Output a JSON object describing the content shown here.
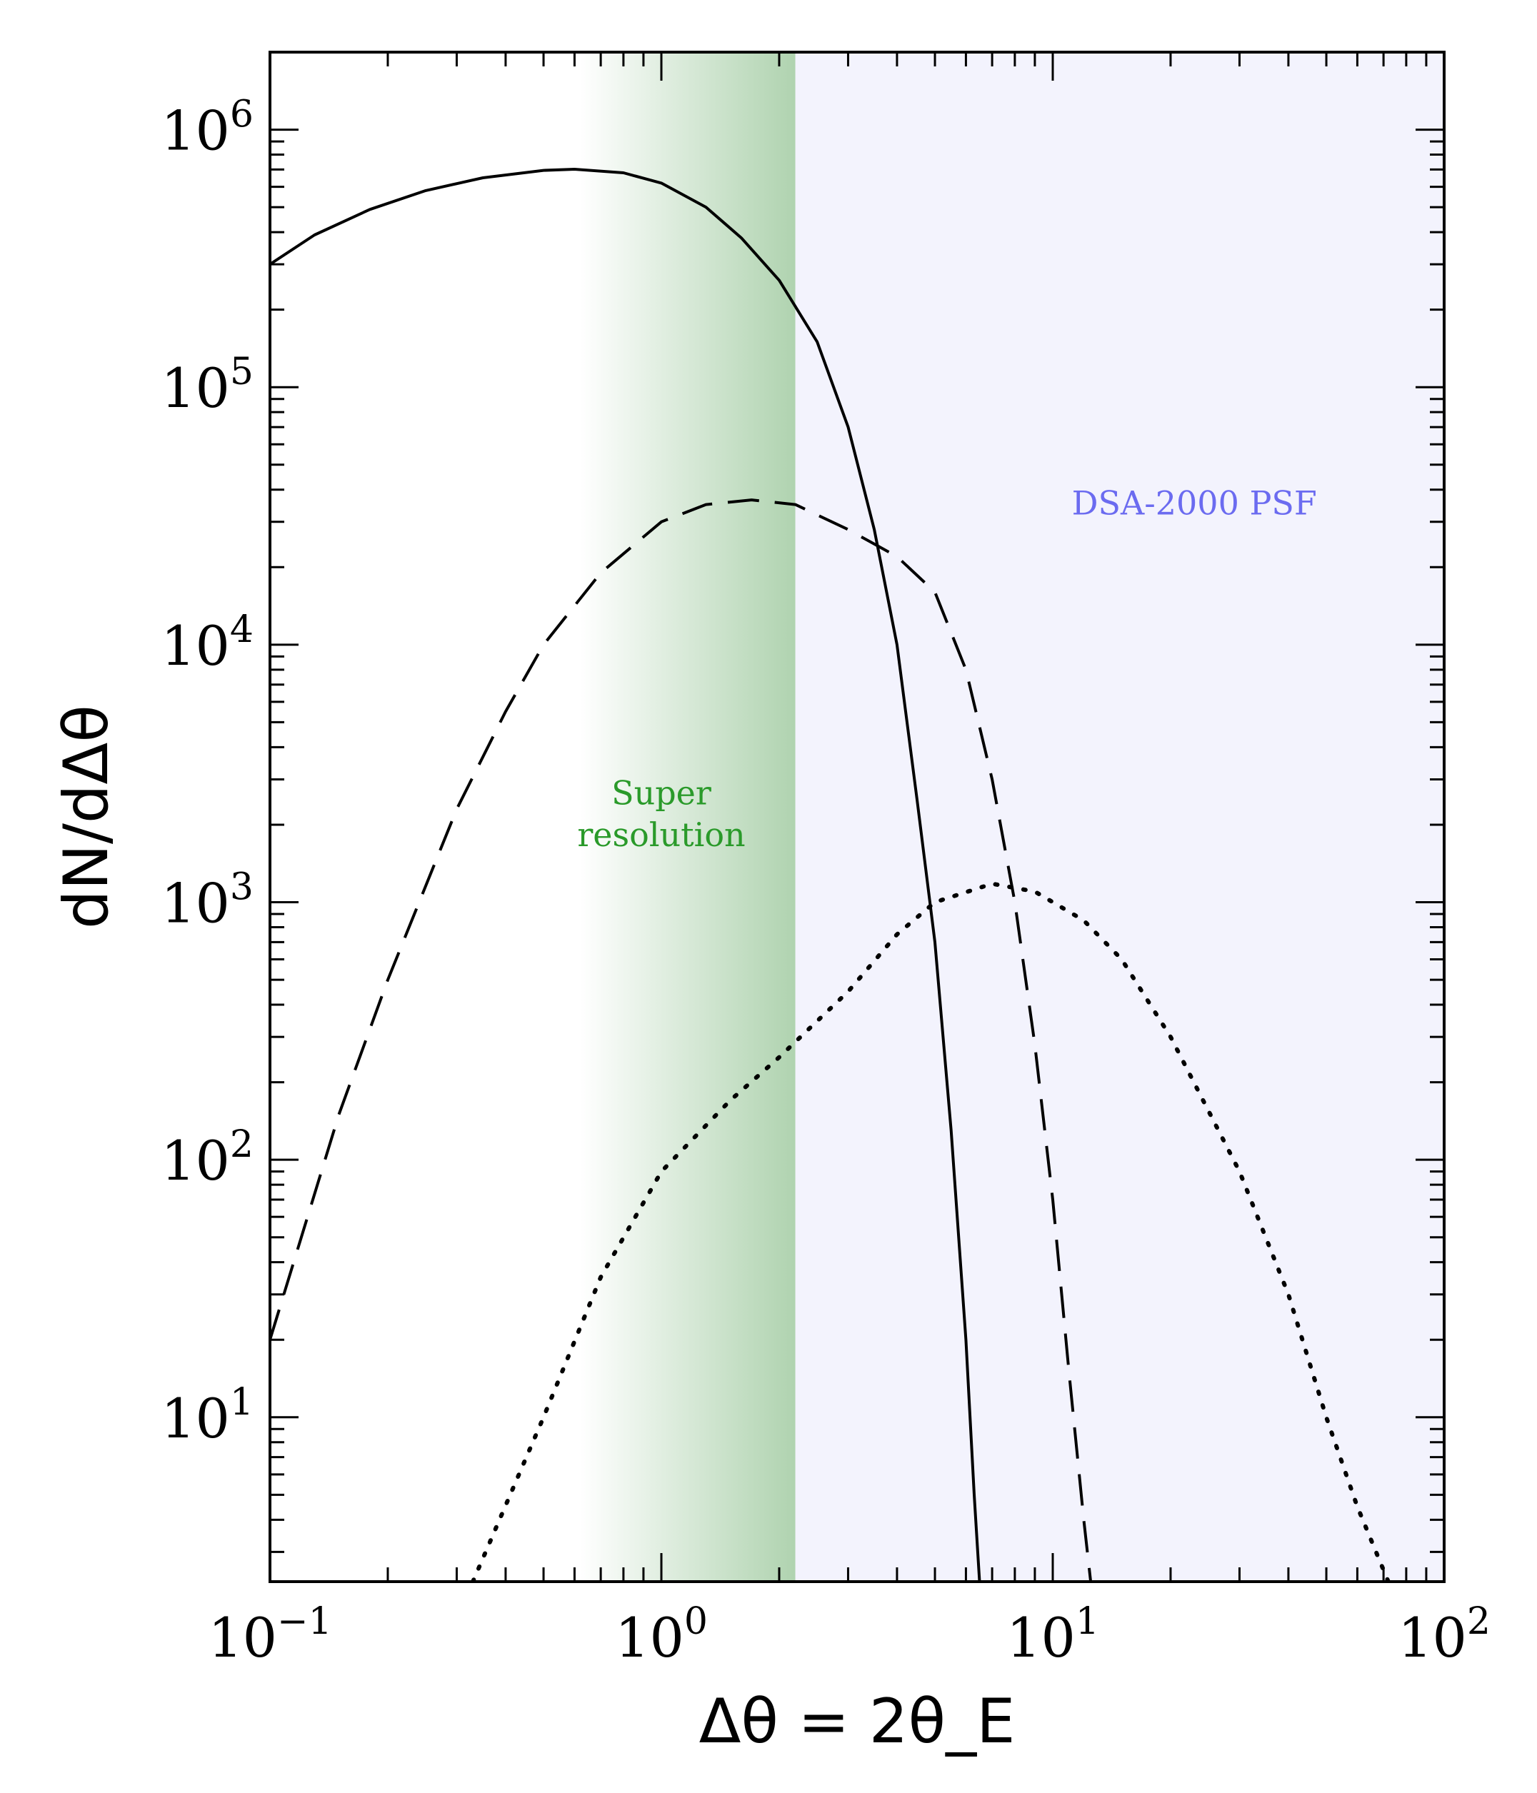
{
  "chart_data": {
    "type": "line",
    "xscale": "log",
    "yscale": "log",
    "xlim": [
      0.1,
      100
    ],
    "ylim": [
      2.3,
      2000000
    ],
    "xlabel": "Δθ = 2θ_E",
    "ylabel": "dN/dΔθ",
    "grid": false,
    "x_ticks": [
      {
        "base": "10",
        "exp": "−1",
        "value": 0.1
      },
      {
        "base": "10",
        "exp": "0",
        "value": 1
      },
      {
        "base": "10",
        "exp": "1",
        "value": 10
      },
      {
        "base": "10",
        "exp": "2",
        "value": 100
      }
    ],
    "y_ticks": [
      {
        "base": "10",
        "exp": "1",
        "value": 10
      },
      {
        "base": "10",
        "exp": "2",
        "value": 100
      },
      {
        "base": "10",
        "exp": "3",
        "value": 1000
      },
      {
        "base": "10",
        "exp": "4",
        "value": 10000
      },
      {
        "base": "10",
        "exp": "5",
        "value": 100000
      },
      {
        "base": "10",
        "exp": "6",
        "value": 1000000
      }
    ],
    "regions": [
      {
        "label_lines": [
          "Super",
          "resolution"
        ],
        "x_range": [
          0.62,
          2.2
        ],
        "color": "#2e8b2e",
        "style": "gradient",
        "label_color": "#2a9a2a",
        "label_x": 1.0,
        "label_y": [
          2400,
          1650
        ]
      },
      {
        "label_lines": [
          "DSA-2000 PSF"
        ],
        "x_range": [
          2.2,
          100
        ],
        "color": "#f3f3fd",
        "style": "solid",
        "label_color": "#6b6bf0",
        "label_x": 23,
        "label_y": [
          32000
        ]
      }
    ],
    "series": [
      {
        "style": "solid",
        "points": [
          [
            0.1,
            300000
          ],
          [
            0.13,
            390000
          ],
          [
            0.18,
            490000
          ],
          [
            0.25,
            580000
          ],
          [
            0.35,
            650000
          ],
          [
            0.5,
            695000
          ],
          [
            0.6,
            702000
          ],
          [
            0.8,
            680000
          ],
          [
            1.0,
            620000
          ],
          [
            1.3,
            500000
          ],
          [
            1.6,
            380000
          ],
          [
            2.0,
            260000
          ],
          [
            2.5,
            150000
          ],
          [
            3.0,
            70000
          ],
          [
            3.5,
            28000
          ],
          [
            4.0,
            10000
          ],
          [
            4.5,
            2500
          ],
          [
            5.0,
            700
          ],
          [
            5.5,
            130
          ],
          [
            6.0,
            20
          ],
          [
            6.3,
            5
          ],
          [
            6.5,
            2.3
          ]
        ]
      },
      {
        "style": "dashed",
        "points": [
          [
            0.1,
            20
          ],
          [
            0.15,
            150
          ],
          [
            0.2,
            500
          ],
          [
            0.3,
            2300
          ],
          [
            0.4,
            5500
          ],
          [
            0.5,
            10000
          ],
          [
            0.7,
            19000
          ],
          [
            1.0,
            30000
          ],
          [
            1.3,
            35000
          ],
          [
            1.7,
            36500
          ],
          [
            2.2,
            35000
          ],
          [
            3.0,
            28000
          ],
          [
            4.0,
            22000
          ],
          [
            5.0,
            16000
          ],
          [
            6.0,
            8000
          ],
          [
            7.0,
            3000
          ],
          [
            8.0,
            1000
          ],
          [
            9.0,
            280
          ],
          [
            10.0,
            70
          ],
          [
            11.0,
            15
          ],
          [
            12.0,
            4
          ],
          [
            12.5,
            2.3
          ]
        ]
      },
      {
        "style": "dotted",
        "points": [
          [
            0.33,
            2.3
          ],
          [
            0.5,
            10
          ],
          [
            0.7,
            35
          ],
          [
            1.0,
            90
          ],
          [
            1.5,
            170
          ],
          [
            2.0,
            250
          ],
          [
            3.0,
            450
          ],
          [
            4.0,
            750
          ],
          [
            5.0,
            1000
          ],
          [
            7.0,
            1180
          ],
          [
            9.0,
            1100
          ],
          [
            12.0,
            850
          ],
          [
            15.0,
            600
          ],
          [
            20.0,
            300
          ],
          [
            30.0,
            90
          ],
          [
            40.0,
            30
          ],
          [
            50.0,
            10
          ],
          [
            60.0,
            4.5
          ],
          [
            72.0,
            2.3
          ]
        ]
      }
    ]
  }
}
